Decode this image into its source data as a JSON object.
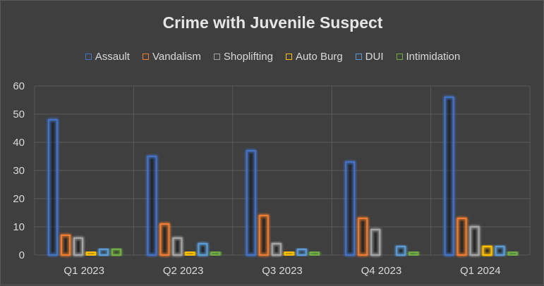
{
  "chart_data": {
    "type": "bar",
    "title": "Crime with Juvenile Suspect",
    "categories": [
      "Q1 2023",
      "Q2 2023",
      "Q3 2023",
      "Q4 2023",
      "Q1 2024"
    ],
    "series": [
      {
        "name": "Assault",
        "color": "#4472c4",
        "values": [
          48,
          35,
          37,
          33,
          56
        ]
      },
      {
        "name": "Vandalism",
        "color": "#ed7d31",
        "values": [
          7,
          11,
          14,
          13,
          13
        ]
      },
      {
        "name": "Shoplifting",
        "color": "#a5a5a5",
        "values": [
          6,
          6,
          4,
          9,
          10
        ]
      },
      {
        "name": "Auto Burg",
        "color": "#ffc000",
        "values": [
          1,
          1,
          1,
          0,
          3
        ]
      },
      {
        "name": "DUI",
        "color": "#5b9bd5",
        "values": [
          2,
          4,
          2,
          3,
          3
        ]
      },
      {
        "name": "Intimidation",
        "color": "#70ad47",
        "values": [
          2,
          1,
          1,
          1,
          1
        ]
      }
    ],
    "y_ticks": [
      "0",
      "10",
      "20",
      "30",
      "40",
      "50",
      "60"
    ],
    "ylim": [
      0,
      60
    ],
    "grid": true,
    "legend_position": "top"
  }
}
